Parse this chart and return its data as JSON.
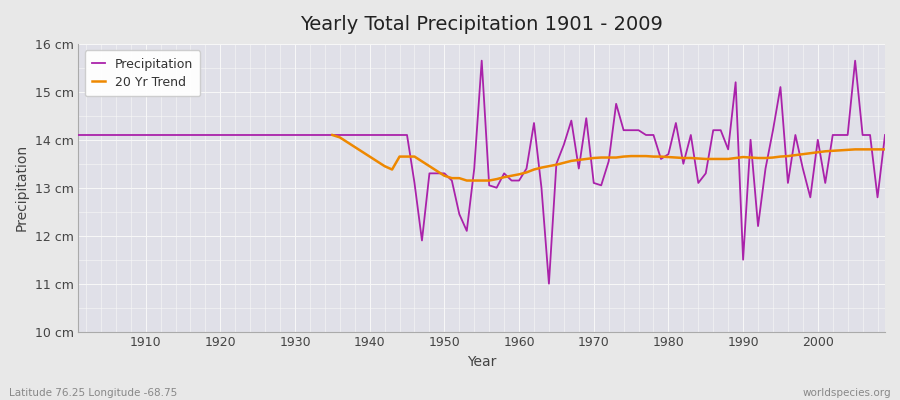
{
  "title": "Yearly Total Precipitation 1901 - 2009",
  "xlabel": "Year",
  "ylabel": "Precipitation",
  "subtitle": "Latitude 76.25 Longitude -68.75",
  "credit": "worldspecies.org",
  "ylim": [
    10,
    16
  ],
  "yticks": [
    10,
    11,
    12,
    13,
    14,
    15,
    16
  ],
  "ytick_labels": [
    "10 cm",
    "11 cm",
    "12 cm",
    "13 cm",
    "14 cm",
    "15 cm",
    "16 cm"
  ],
  "xlim": [
    1901,
    2009
  ],
  "xticks": [
    1910,
    1920,
    1930,
    1940,
    1950,
    1960,
    1970,
    1980,
    1990,
    2000
  ],
  "precip_color": "#aa22aa",
  "trend_color": "#ee8800",
  "bg_color": "#e8e8e8",
  "plot_bg_color": "#e0e0e8",
  "grid_color": "#f8f8f8",
  "years": [
    1901,
    1902,
    1903,
    1904,
    1905,
    1906,
    1907,
    1908,
    1909,
    1910,
    1911,
    1912,
    1913,
    1914,
    1915,
    1916,
    1917,
    1918,
    1919,
    1920,
    1921,
    1922,
    1923,
    1924,
    1925,
    1926,
    1927,
    1928,
    1929,
    1930,
    1931,
    1932,
    1933,
    1934,
    1935,
    1936,
    1937,
    1938,
    1939,
    1940,
    1941,
    1942,
    1943,
    1944,
    1945,
    1946,
    1947,
    1948,
    1949,
    1950,
    1951,
    1952,
    1953,
    1954,
    1955,
    1956,
    1957,
    1958,
    1959,
    1960,
    1961,
    1962,
    1963,
    1964,
    1965,
    1966,
    1967,
    1968,
    1969,
    1970,
    1971,
    1972,
    1973,
    1974,
    1975,
    1976,
    1977,
    1978,
    1979,
    1980,
    1981,
    1982,
    1983,
    1984,
    1985,
    1986,
    1987,
    1988,
    1989,
    1990,
    1991,
    1992,
    1993,
    1994,
    1995,
    1996,
    1997,
    1998,
    1999,
    2000,
    2001,
    2002,
    2003,
    2004,
    2005,
    2006,
    2007,
    2008,
    2009
  ],
  "precipitation": [
    14.1,
    14.1,
    14.1,
    14.1,
    14.1,
    14.1,
    14.1,
    14.1,
    14.1,
    14.1,
    14.1,
    14.1,
    14.1,
    14.1,
    14.1,
    14.1,
    14.1,
    14.1,
    14.1,
    14.1,
    14.1,
    14.1,
    14.1,
    14.1,
    14.1,
    14.1,
    14.1,
    14.1,
    14.1,
    14.1,
    14.1,
    14.1,
    14.1,
    14.1,
    14.1,
    14.1,
    14.1,
    14.1,
    14.1,
    14.1,
    14.1,
    14.1,
    14.1,
    14.1,
    14.1,
    13.1,
    11.9,
    13.3,
    13.3,
    13.3,
    13.15,
    12.45,
    12.1,
    13.4,
    15.65,
    13.05,
    13.0,
    13.3,
    13.15,
    13.15,
    13.4,
    14.35,
    13.0,
    11.0,
    13.5,
    13.9,
    14.4,
    13.4,
    14.45,
    13.1,
    13.05,
    13.55,
    14.75,
    14.2,
    14.2,
    14.2,
    14.1,
    14.1,
    13.6,
    13.7,
    14.35,
    13.5,
    14.1,
    13.1,
    13.3,
    14.2,
    14.2,
    13.8,
    15.2,
    11.5,
    14.0,
    12.2,
    13.4,
    14.2,
    15.1,
    13.1,
    14.1,
    13.4,
    12.8,
    14.0,
    13.1,
    14.1,
    14.1,
    14.1,
    15.65,
    14.1,
    14.1,
    12.8,
    14.1
  ],
  "trend_years": [
    1935,
    1936,
    1937,
    1938,
    1939,
    1940,
    1941,
    1942,
    1943,
    1944,
    1945,
    1946,
    1947,
    1948,
    1949,
    1950,
    1951,
    1952,
    1953,
    1954,
    1955,
    1956,
    1957,
    1958,
    1959,
    1960,
    1961,
    1962,
    1963,
    1964,
    1965,
    1966,
    1967,
    1968,
    1969,
    1970,
    1971,
    1972,
    1973,
    1974,
    1975,
    1976,
    1977,
    1978,
    1979,
    1980,
    1981,
    1982,
    1983,
    1984,
    1985,
    1986,
    1987,
    1988,
    1989,
    1990,
    1991,
    1992,
    1993,
    1994,
    1995,
    1996,
    1997,
    1998,
    1999,
    2000,
    2001,
    2002,
    2003,
    2004,
    2005,
    2006,
    2007,
    2008,
    2009
  ],
  "trend": [
    14.1,
    14.05,
    13.95,
    13.85,
    13.75,
    13.65,
    13.55,
    13.45,
    13.38,
    13.65,
    13.65,
    13.65,
    13.55,
    13.45,
    13.35,
    13.25,
    13.2,
    13.2,
    13.15,
    13.15,
    13.15,
    13.15,
    13.18,
    13.22,
    13.25,
    13.28,
    13.32,
    13.38,
    13.42,
    13.45,
    13.48,
    13.52,
    13.56,
    13.58,
    13.6,
    13.62,
    13.63,
    13.63,
    13.63,
    13.65,
    13.66,
    13.66,
    13.66,
    13.65,
    13.65,
    13.64,
    13.63,
    13.62,
    13.62,
    13.61,
    13.6,
    13.6,
    13.6,
    13.6,
    13.62,
    13.64,
    13.63,
    13.62,
    13.62,
    13.63,
    13.65,
    13.66,
    13.68,
    13.7,
    13.72,
    13.74,
    13.76,
    13.77,
    13.78,
    13.79,
    13.8,
    13.8,
    13.8,
    13.8,
    13.8
  ]
}
